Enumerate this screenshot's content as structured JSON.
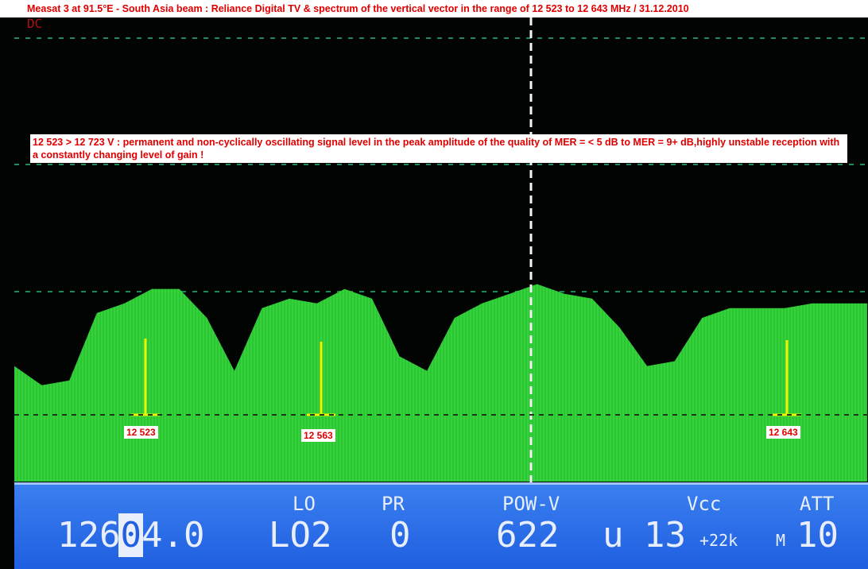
{
  "title": "Measat 3 at 91.5°E - South Asia beam : Reliance Digital TV & spectrum of the vertical vector in the range of 12 523 to 12 643 MHz / 31.12.2010",
  "screen_mode": "DC",
  "note": "12 523 > 12 723 V : permanent and non-cyclically oscillating signal level in the peak amplitude of the quality of MER = < 5 dB to MER = 9+ dB,highly unstable reception with a constantly changing level of gain !",
  "markers": [
    {
      "label": "12 523"
    },
    {
      "label": "12 563"
    },
    {
      "label": "12 643"
    }
  ],
  "status_bar": {
    "labels": {
      "lo": "LO",
      "pr": "PR",
      "pow": "POW-V",
      "vcc": "Vcc",
      "att": "ATT"
    },
    "freq_prefix": "126",
    "freq_cursor_digit": "0",
    "freq_suffix": "4.0",
    "lo": "LO2",
    "pr": "0",
    "pow": "622",
    "unit": "u",
    "vcc": "13",
    "tone": "+22k",
    "mode": "M",
    "att": "10"
  },
  "colors": {
    "trace": "#33d43a",
    "marker": "#f2f200",
    "bar": "#2a6ee8",
    "title_text": "#e00000"
  },
  "chart_data": {
    "type": "area",
    "title": "",
    "xlabel": "",
    "ylabel": "",
    "grid": true,
    "series": [
      {
        "values": [
          24,
          20,
          21,
          35,
          37,
          40,
          40,
          34,
          23,
          36,
          38,
          37,
          40,
          38,
          26,
          23,
          34,
          37,
          39,
          41,
          39,
          38,
          32,
          24,
          25,
          34,
          36,
          36,
          36,
          37,
          37,
          37
        ]
      }
    ]
  }
}
